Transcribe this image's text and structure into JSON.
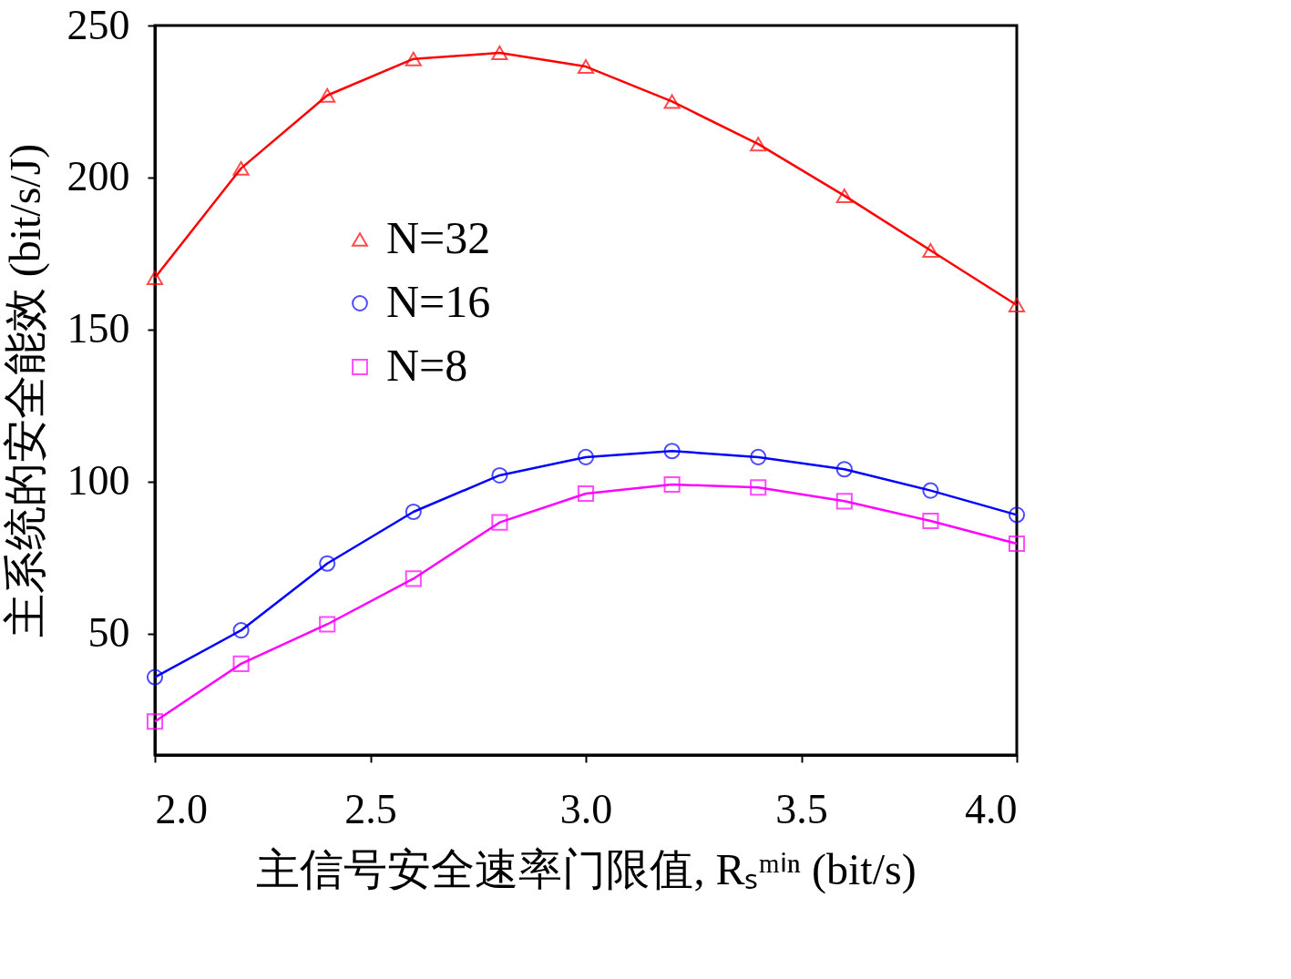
{
  "chart_data": {
    "type": "line",
    "xlabel": "主信号安全速率门限值, Rₛᵐⁱⁿ (bit/s)",
    "ylabel": "主系统的安全能效 (bit/s/J)",
    "x": [
      2.0,
      2.2,
      2.4,
      2.6,
      2.8,
      3.0,
      3.2,
      3.4,
      3.6,
      3.8,
      4.0
    ],
    "series": [
      {
        "name": "N=32",
        "color": "#ff0000",
        "marker": "triangle",
        "values": [
          167,
          203,
          227,
          239,
          241,
          236.5,
          225,
          211,
          194,
          176,
          158
        ]
      },
      {
        "name": "N=16",
        "color": "#0000ff",
        "marker": "circle",
        "values": [
          35.6,
          51,
          73,
          90,
          102,
          108,
          110,
          108,
          104,
          97,
          89
        ]
      },
      {
        "name": "N=8",
        "color": "#ff00ff",
        "marker": "square",
        "values": [
          21,
          40,
          53,
          68,
          86.5,
          96,
          99,
          98,
          93.5,
          87,
          79.5
        ]
      }
    ],
    "xlim": [
      2.0,
      4.0
    ],
    "xticks": [
      {
        "value": 2,
        "label": "2.0"
      },
      {
        "value": 2.5,
        "label": "2.5"
      },
      {
        "value": 3,
        "label": "3.0"
      },
      {
        "value": 3.5,
        "label": "3.5"
      },
      {
        "value": 4,
        "label": "4.0"
      }
    ],
    "ylim": [
      10,
      250
    ],
    "yticks": [
      50,
      100,
      150,
      200,
      250
    ],
    "grid": false,
    "legend": "top left",
    "line_style": "solid"
  }
}
